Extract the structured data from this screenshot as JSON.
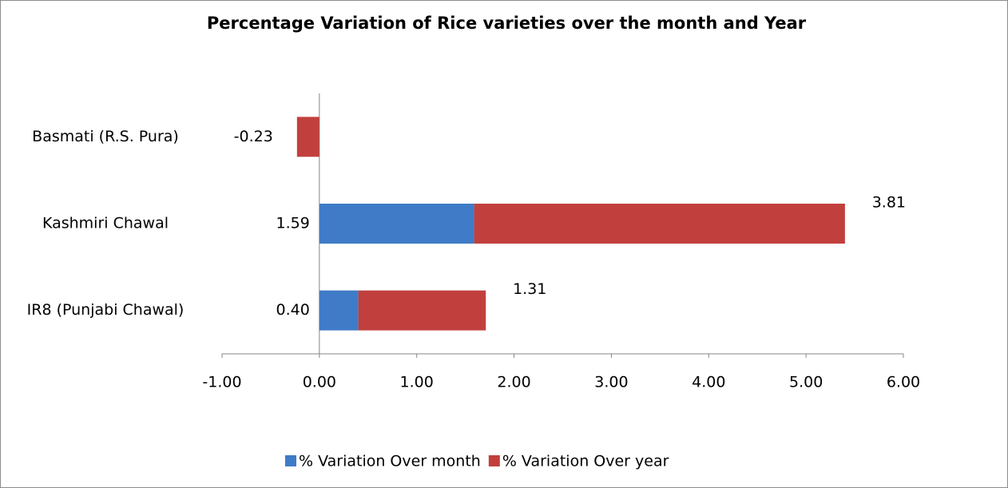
{
  "chart_data": {
    "type": "stacked-bar-horizontal",
    "title": "Percentage Variation of Rice varieties over the month and Year",
    "categories": [
      "Basmati (R.S. Pura)",
      "Kashmiri Chawal",
      "IR8 (Punjabi Chawal)"
    ],
    "series": [
      {
        "name": "% Variation Over month",
        "color": "#3f7bc7",
        "values": [
          null,
          1.59,
          0.4
        ],
        "value_labels": [
          null,
          "1.59",
          "0.40"
        ]
      },
      {
        "name": "% Variation Over year",
        "color": "#c1403d",
        "values": [
          -0.23,
          3.81,
          1.31
        ],
        "value_labels": [
          "-0.23",
          "3.81",
          "1.31"
        ]
      }
    ],
    "xlim": [
      -1,
      6
    ],
    "xticks": [
      {
        "value": -1,
        "label": "-1.00"
      },
      {
        "value": 0,
        "label": "0.00"
      },
      {
        "value": 1,
        "label": "1.00"
      },
      {
        "value": 2,
        "label": "2.00"
      },
      {
        "value": 3,
        "label": "3.00"
      },
      {
        "value": 4,
        "label": "4.00"
      },
      {
        "value": 5,
        "label": "5.00"
      },
      {
        "value": 6,
        "label": "6.00"
      }
    ],
    "legend": "bottom"
  }
}
